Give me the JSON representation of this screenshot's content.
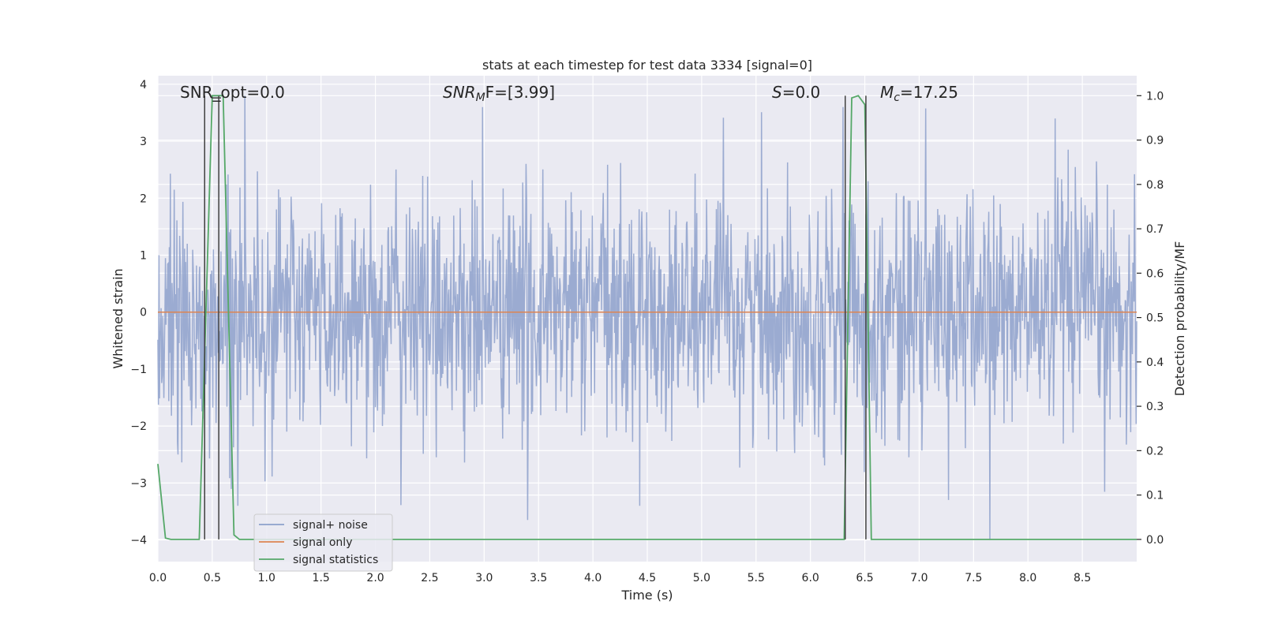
{
  "chart_data": {
    "type": "line",
    "title": "stats at each timestep for test data 3334 [signal=0]",
    "xlabel": "Time (s)",
    "ylabel_left": "Whitened strain",
    "ylabel_right": "Detection probability/MF",
    "xlim": [
      0,
      9.0
    ],
    "ylim_left": [
      -4.38,
      4.15
    ],
    "ylim_right": [
      -0.05,
      1.045
    ],
    "x_ticks": [
      0.0,
      0.5,
      1.0,
      1.5,
      2.0,
      2.5,
      3.0,
      3.5,
      4.0,
      4.5,
      5.0,
      5.5,
      6.0,
      6.5,
      7.0,
      7.5,
      8.0,
      8.5
    ],
    "x_tick_labels": [
      "0.0",
      "0.5",
      "1.0",
      "1.5",
      "2.0",
      "2.5",
      "3.0",
      "3.5",
      "4.0",
      "4.5",
      "5.0",
      "5.5",
      "6.0",
      "6.5",
      "7.0",
      "7.5",
      "8.0",
      "8.5"
    ],
    "y_left_ticks": [
      -4,
      -3,
      -2,
      -1,
      0,
      1,
      2,
      3,
      4
    ],
    "y_left_tick_labels": [
      "−4",
      "−3",
      "−2",
      "−1",
      "0",
      "1",
      "2",
      "3",
      "4"
    ],
    "y_right_ticks": [
      0.0,
      0.1,
      0.2,
      0.3,
      0.4,
      0.5,
      0.6,
      0.7,
      0.8,
      0.9,
      1.0
    ],
    "y_right_tick_labels": [
      "0.0",
      "0.1",
      "0.2",
      "0.3",
      "0.4",
      "0.5",
      "0.6",
      "0.7",
      "0.8",
      "0.9",
      "1.0"
    ],
    "grid": true,
    "legend_position": "lower-left",
    "series": [
      {
        "name": "signal+ noise",
        "axis": "left",
        "color": "#8da0cb",
        "description_values": "whitened noise, approx. uniform band between about -1.7 and 1.4 with spikes up to about 3.9 and down to about -4.0 across 0–9 s",
        "sample_rate_hz": 200,
        "seed": 3334,
        "extremes": [
          {
            "x": 0.8,
            "y": 3.8
          },
          {
            "x": 3.4,
            "y": -3.65
          },
          {
            "x": 6.3,
            "y": 3.6
          },
          {
            "x": 7.65,
            "y": -4.0
          },
          {
            "x": 8.25,
            "y": 3.4
          }
        ]
      },
      {
        "name": "signal only",
        "axis": "left",
        "color": "#dd8452",
        "x": [
          0.0,
          9.0
        ],
        "y": [
          0.0,
          0.0
        ]
      },
      {
        "name": "signal statistics",
        "axis": "right",
        "color": "#55a868",
        "x": [
          0.0,
          0.07,
          0.12,
          0.38,
          0.5,
          0.6,
          0.7,
          0.75,
          6.31,
          6.38,
          6.44,
          6.5,
          6.56,
          9.0
        ],
        "y": [
          0.17,
          0.003,
          0.0,
          0.0,
          1.0,
          1.0,
          0.01,
          0.0,
          0.0,
          0.995,
          1.0,
          0.98,
          0.0,
          0.0
        ]
      }
    ],
    "vertical_markers": [
      {
        "x": 0.43,
        "ymax": 1.0
      },
      {
        "x": 0.56,
        "ymax": 1.0
      },
      {
        "x": 6.32,
        "ymax": 1.0
      },
      {
        "x": 6.51,
        "ymax": 1.0
      }
    ],
    "horizontal_markers": [
      {
        "x0": 0.49,
        "x1": 0.58,
        "y": 0.995
      }
    ],
    "annotations": [
      {
        "id": "snr-opt",
        "text": "SNR_opt=0.0"
      },
      {
        "id": "snr-mf",
        "text": "SNR_MF=[3.99]"
      },
      {
        "id": "s-stat",
        "text": "S=0.0"
      },
      {
        "id": "mc",
        "text": "M_c=17.25"
      }
    ],
    "colors": {
      "plot_background": "#eaeaf2",
      "grid": "#ffffff",
      "marker_lines": "#404040"
    }
  }
}
